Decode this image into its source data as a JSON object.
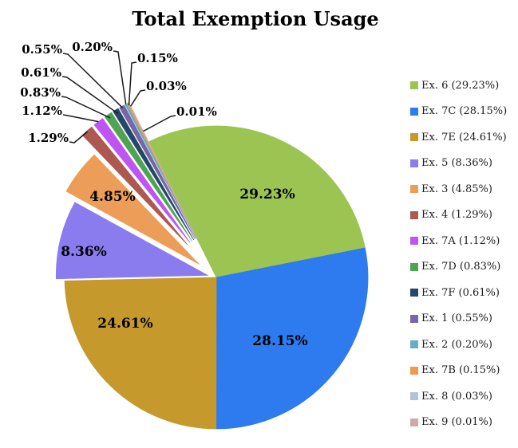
{
  "title": "Total Exemption Usage",
  "chart_data": {
    "type": "pie",
    "title": "Total Exemption Usage",
    "legend_position": "right",
    "value_format": "percent_2dp",
    "label_style": "percent_on_slice_or_callout",
    "slices": [
      {
        "label": "Ex. 6",
        "value": 29.23,
        "color": "#9CC452"
      },
      {
        "label": "Ex. 7C",
        "value": 28.15,
        "color": "#2E7AEF"
      },
      {
        "label": "Ex. 7E",
        "value": 24.61,
        "color": "#C5992B"
      },
      {
        "label": "Ex. 5",
        "value": 8.36,
        "color": "#8A7BEF"
      },
      {
        "label": "Ex. 3",
        "value": 4.85,
        "color": "#EC9D57"
      },
      {
        "label": "Ex. 4",
        "value": 1.29,
        "color": "#AC5950"
      },
      {
        "label": "Ex. 7A",
        "value": 1.12,
        "color": "#BE55F2"
      },
      {
        "label": "Ex. 7D",
        "value": 0.83,
        "color": "#4FA454"
      },
      {
        "label": "Ex. 7F",
        "value": 0.61,
        "color": "#24476B"
      },
      {
        "label": "Ex. 1",
        "value": 0.55,
        "color": "#7867A5"
      },
      {
        "label": "Ex. 2",
        "value": 0.2,
        "color": "#66AFC3"
      },
      {
        "label": "Ex. 7B",
        "value": 0.15,
        "color": "#EE9A4D"
      },
      {
        "label": "Ex. 8",
        "value": 0.03,
        "color": "#B3C1DB"
      },
      {
        "label": "Ex. 9",
        "value": 0.01,
        "color": "#D2A9AB"
      }
    ]
  }
}
